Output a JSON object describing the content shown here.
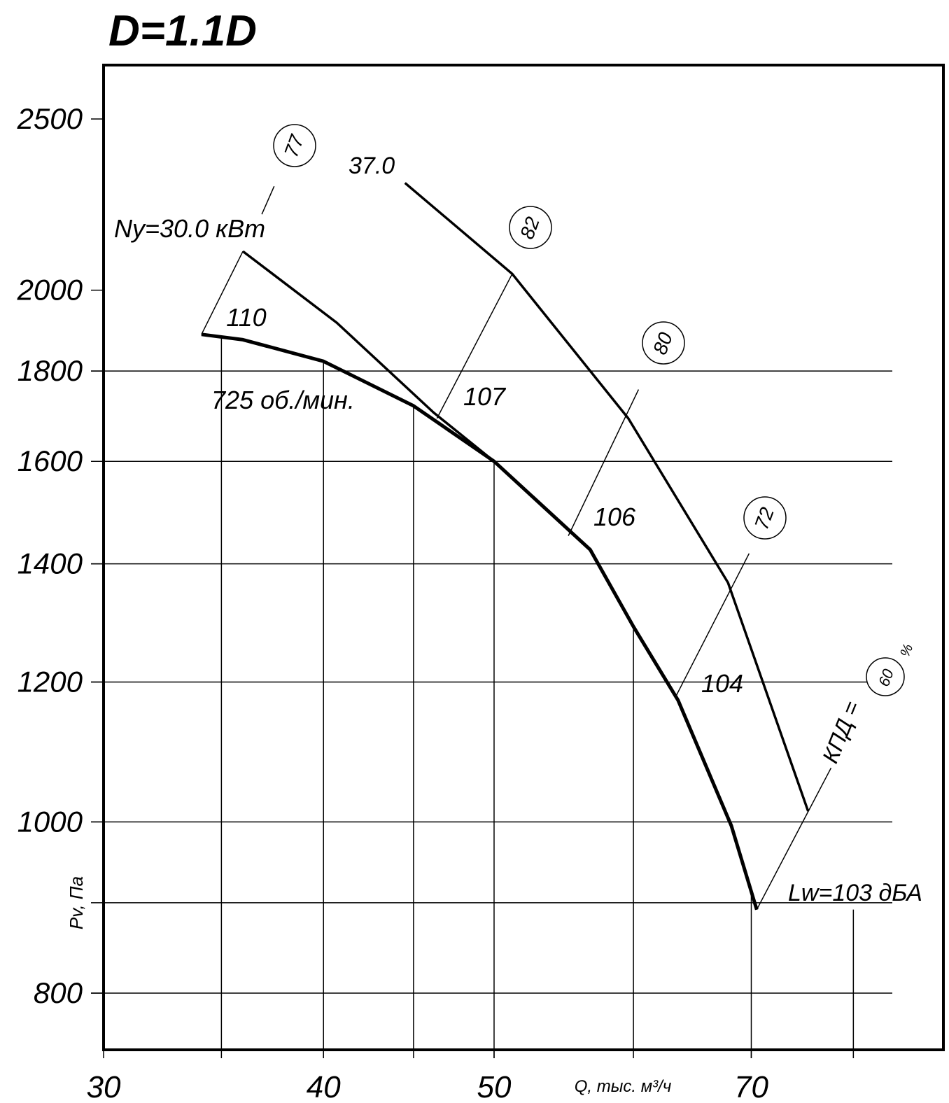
{
  "chart_data": {
    "type": "line",
    "title": "D=1.1D",
    "x_label": "Q, тыс. м³/ч",
    "y_label": "Pv, Па",
    "x_log": true,
    "y_log": true,
    "xlim": [
      30,
      90
    ],
    "ylim": [
      743,
      2682
    ],
    "xticks": [
      30,
      40,
      50,
      70
    ],
    "yticks": [
      800,
      1000,
      1200,
      1400,
      1600,
      1800,
      2000,
      2500
    ],
    "x_grid": [
      35,
      40,
      45,
      50,
      60,
      70,
      80
    ],
    "y_grid": [
      800,
      900,
      1000,
      1200,
      1400,
      1600,
      1800
    ],
    "series": [
      {
        "name": "725 об./мин.",
        "color": "#000000",
        "width": 5,
        "x": [
          34.1,
          36,
          40,
          45,
          50,
          56.7,
          60,
          63.6,
          68.2,
          70.5
        ],
        "y": [
          1888,
          1875,
          1823,
          1720,
          1600,
          1426,
          1290,
          1172,
          995,
          892
        ]
      },
      {
        "name": "Ny=30.0 кВт",
        "color": "#000000",
        "width": 3.5,
        "x": [
          36,
          40.7,
          46.2,
          50
        ],
        "y": [
          2104,
          1917,
          1705,
          1600
        ]
      },
      {
        "name": "37.0",
        "color": "#000000",
        "width": 3.5,
        "x": [
          44.5,
          51.2,
          59.6,
          67.9,
          75.4
        ],
        "y": [
          2300,
          2043,
          1692,
          1366,
          1014
        ]
      }
    ],
    "efficiency": [
      {
        "name": "77",
        "x": [
          34.1,
          36,
          null,
          36.9,
          37.5
        ],
        "y": [
          1888,
          2104,
          null,
          2208,
          2290
        ]
      },
      {
        "name": "82",
        "x": [
          46.4,
          51.2
        ],
        "y": [
          1692,
          2043
        ]
      },
      {
        "name": "80",
        "x": [
          55.1,
          60.4
        ],
        "y": [
          1452,
          1757
        ]
      },
      {
        "name": "72",
        "x": [
          63.4,
          69.8
        ],
        "y": [
          1177,
          1419
        ]
      },
      {
        "name": "60",
        "x": [
          70.5,
          77.7
        ],
        "y": [
          892,
          1073
        ]
      }
    ],
    "efficiency_label": "КПД =",
    "efficiency_unit": "%",
    "noise_labels": [
      "110",
      "107",
      "106",
      "104"
    ],
    "noise_start": "Lw=103 дБА"
  }
}
